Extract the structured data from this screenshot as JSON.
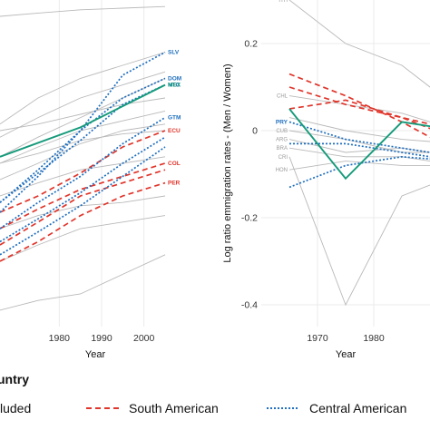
{
  "chart_data": [
    {
      "type": "line",
      "panel": "left",
      "xlabel": "Year",
      "ylabel": "",
      "xlim": [
        1966,
        2011
      ],
      "ylim": [
        0,
        1
      ],
      "x_ticks": [
        1980,
        1990,
        2000
      ],
      "grid": true,
      "series": [
        {
          "group": "gray",
          "x": [
            1966,
            1975,
            1985,
            1995,
            2005
          ],
          "y": [
            0.95,
            0.96,
            0.97,
            0.975,
            0.98
          ]
        },
        {
          "group": "gray",
          "x": [
            1966,
            1975,
            1985,
            1995,
            2005
          ],
          "y": [
            0.62,
            0.7,
            0.76,
            0.8,
            0.84
          ]
        },
        {
          "group": "gray",
          "x": [
            1966,
            1975,
            1985,
            1995,
            2005
          ],
          "y": [
            0.58,
            0.64,
            0.7,
            0.74,
            0.78
          ]
        },
        {
          "group": "gray",
          "x": [
            1966,
            1975,
            1985,
            1995,
            2005
          ],
          "y": [
            0.52,
            0.58,
            0.64,
            0.7,
            0.76
          ]
        },
        {
          "group": "gray",
          "x": [
            1966,
            1975,
            1985,
            1995,
            2005
          ],
          "y": [
            0.6,
            0.62,
            0.65,
            0.68,
            0.7
          ]
        },
        {
          "group": "gray",
          "x": [
            1966,
            1975,
            1985,
            1995,
            2005
          ],
          "y": [
            0.5,
            0.55,
            0.6,
            0.63,
            0.66
          ]
        },
        {
          "group": "gray",
          "x": [
            1966,
            1975,
            1985,
            1995,
            2005
          ],
          "y": [
            0.45,
            0.5,
            0.56,
            0.6,
            0.62
          ]
        },
        {
          "group": "gray",
          "x": [
            1966,
            1975,
            1985,
            1995,
            2005
          ],
          "y": [
            0.4,
            0.44,
            0.48,
            0.5,
            0.52
          ]
        },
        {
          "group": "gray",
          "x": [
            1966,
            1975,
            1985,
            1995,
            2005
          ],
          "y": [
            0.3,
            0.34,
            0.37,
            0.38,
            0.4
          ]
        },
        {
          "group": "gray",
          "x": [
            1966,
            1975,
            1985,
            1995,
            2005
          ],
          "y": [
            0.2,
            0.25,
            0.3,
            0.32,
            0.34
          ]
        },
        {
          "group": "gray",
          "x": [
            1966,
            1975,
            1985,
            1995,
            2005
          ],
          "y": [
            0.05,
            0.08,
            0.1,
            0.16,
            0.22
          ]
        },
        {
          "group": "gray",
          "x": [
            1966,
            1975,
            1985,
            1995,
            2005
          ],
          "y": [
            0.5,
            0.53,
            0.57,
            0.59,
            0.6
          ]
        },
        {
          "group": "South American",
          "label": "ECU",
          "x": [
            1966,
            1975,
            1985,
            1995,
            2005
          ],
          "y": [
            0.35,
            0.4,
            0.47,
            0.55,
            0.6
          ]
        },
        {
          "group": "South American",
          "label": "COL",
          "x": [
            1966,
            1975,
            1985,
            1995,
            2005
          ],
          "y": [
            0.3,
            0.36,
            0.42,
            0.46,
            0.5
          ]
        },
        {
          "group": "South American",
          "label": "PER",
          "x": [
            1966,
            1975,
            1985,
            1995,
            2005
          ],
          "y": [
            0.2,
            0.26,
            0.34,
            0.4,
            0.44
          ]
        },
        {
          "group": "South American",
          "label": "",
          "x": [
            1966,
            1975,
            1985,
            1995,
            2005
          ],
          "y": [
            0.25,
            0.32,
            0.4,
            0.44,
            0.48
          ]
        },
        {
          "group": "Central American",
          "label": "SLV",
          "x": [
            1966,
            1975,
            1985,
            1995,
            2005
          ],
          "y": [
            0.35,
            0.46,
            0.6,
            0.77,
            0.84
          ]
        },
        {
          "group": "Central American",
          "label": "DOM",
          "x": [
            1966,
            1975,
            1985,
            1995,
            2005
          ],
          "y": [
            0.38,
            0.48,
            0.6,
            0.7,
            0.76
          ]
        },
        {
          "group": "Central American",
          "label": "HTC",
          "x": [
            1966,
            1975,
            1985,
            1995,
            2005
          ],
          "y": [
            0.38,
            0.47,
            0.57,
            0.68,
            0.74
          ]
        },
        {
          "group": "Central American",
          "label": "GTM",
          "x": [
            1966,
            1975,
            1985,
            1995,
            2005
          ],
          "y": [
            0.3,
            0.38,
            0.46,
            0.56,
            0.64
          ]
        },
        {
          "group": "Central American",
          "label": "",
          "x": [
            1966,
            1975,
            1985,
            1995,
            2005
          ],
          "y": [
            0.26,
            0.33,
            0.41,
            0.5,
            0.58
          ]
        },
        {
          "group": "Central American",
          "label": "",
          "x": [
            1966,
            1975,
            1985,
            1995,
            2005
          ],
          "y": [
            0.22,
            0.29,
            0.37,
            0.46,
            0.55
          ]
        },
        {
          "group": "Mexico",
          "label": "MEX",
          "x": [
            1966,
            1985,
            2005
          ],
          "y": [
            0.52,
            0.61,
            0.74
          ]
        }
      ]
    },
    {
      "type": "line",
      "panel": "right",
      "xlabel": "Year",
      "ylabel": "Log ratio emmigration rates - (Men / Women)",
      "xlim": [
        1960,
        1990
      ],
      "ylim": [
        -0.45,
        0.3
      ],
      "y_ticks": [
        0.2,
        0.0,
        -0.2,
        -0.4
      ],
      "y_tick_labels": [
        "0.2",
        "0",
        "-0.2",
        "-0.4"
      ],
      "x_ticks": [
        1970,
        1980
      ],
      "grid": true,
      "series": [
        {
          "group": "gray",
          "label": "HTI",
          "x": [
            1965,
            1975,
            1985,
            1995
          ],
          "y": [
            0.3,
            0.2,
            0.15,
            0.05
          ]
        },
        {
          "group": "gray",
          "label": "CHL",
          "x": [
            1965,
            1975,
            1985,
            1995
          ],
          "y": [
            0.08,
            0.06,
            0.04,
            0.0
          ]
        },
        {
          "group": "gray",
          "label": "CUB",
          "x": [
            1965,
            1975,
            1985,
            1995
          ],
          "y": [
            0.0,
            -0.02,
            -0.05,
            -0.05
          ]
        },
        {
          "group": "gray",
          "label": "ARG",
          "x": [
            1965,
            1975,
            1985,
            1995
          ],
          "y": [
            -0.02,
            -0.05,
            -0.04,
            -0.06
          ]
        },
        {
          "group": "gray",
          "label": "BRA",
          "x": [
            1965,
            1975,
            1985,
            1995
          ],
          "y": [
            -0.04,
            -0.06,
            -0.06,
            -0.08
          ]
        },
        {
          "group": "gray",
          "label": "CRI",
          "x": [
            1965,
            1975,
            1985,
            1995
          ],
          "y": [
            -0.06,
            -0.4,
            -0.15,
            -0.1
          ]
        },
        {
          "group": "gray",
          "label": "HON",
          "x": [
            1965,
            1975,
            1985,
            1995
          ],
          "y": [
            -0.09,
            -0.07,
            -0.08,
            -0.08
          ]
        },
        {
          "group": "gray",
          "label": "",
          "x": [
            1965,
            1975,
            1985,
            1995
          ],
          "y": [
            0.03,
            0.0,
            -0.02,
            -0.03
          ]
        },
        {
          "group": "South American",
          "label": "",
          "x": [
            1965,
            1975,
            1985,
            1995
          ],
          "y": [
            0.13,
            0.08,
            0.02,
            -0.05
          ]
        },
        {
          "group": "South American",
          "label": "",
          "x": [
            1965,
            1975,
            1985,
            1995
          ],
          "y": [
            0.1,
            0.06,
            0.03,
            -0.02
          ]
        },
        {
          "group": "South American",
          "label": "",
          "x": [
            1965,
            1975,
            1985,
            1995
          ],
          "y": [
            0.05,
            0.07,
            0.03,
            0.0
          ]
        },
        {
          "group": "Central American",
          "label": "PRY",
          "x": [
            1965,
            1975,
            1985,
            1995
          ],
          "y": [
            0.02,
            -0.02,
            -0.04,
            -0.06
          ]
        },
        {
          "group": "Central American",
          "label": "",
          "x": [
            1965,
            1975,
            1985,
            1995
          ],
          "y": [
            -0.03,
            -0.03,
            -0.05,
            -0.07
          ]
        },
        {
          "group": "Central American",
          "label": "",
          "x": [
            1965,
            1975,
            1985,
            1995
          ],
          "y": [
            -0.13,
            -0.08,
            -0.06,
            -0.07
          ]
        },
        {
          "group": "Mexico",
          "label": "",
          "x": [
            1965,
            1975,
            1985,
            1995
          ],
          "y": [
            0.05,
            -0.11,
            0.02,
            0.0
          ]
        }
      ]
    }
  ],
  "legend": {
    "title": "untry",
    "items": [
      {
        "group": "gray",
        "text": "luded"
      },
      {
        "group": "South American",
        "text": "South American"
      },
      {
        "group": "Central American",
        "text": "Central American"
      }
    ]
  },
  "colors": {
    "gray": "#b9b9b9",
    "South American": "#e0352b",
    "Central American": "#1f6fbf",
    "Mexico": "#159a7a",
    "grid": "#ebebeb",
    "axis_text": "#333333"
  }
}
